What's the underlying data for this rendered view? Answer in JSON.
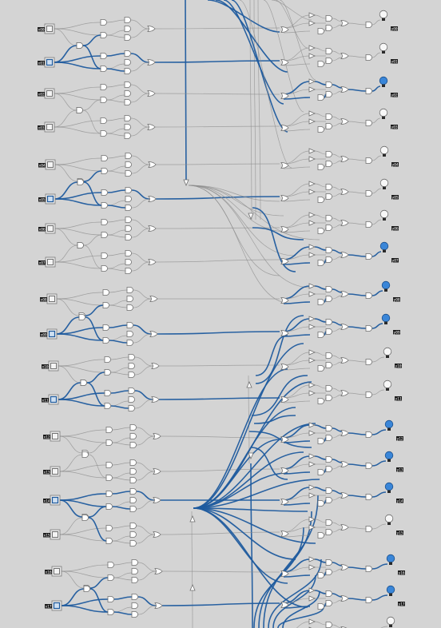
{
  "colors": {
    "background": "#d4d4d4",
    "wire_active": "#1f5b9e",
    "wire_inactive": "#8c8c8c",
    "bulb_on": "#3a86d8",
    "bulb_off": "#f7f7f7"
  },
  "icons": {
    "input_switch": "input-switch-icon",
    "and_gate": "and-gate-icon",
    "or_gate": "or-gate-icon",
    "buffer": "buffer-triangle-icon",
    "output_bulb": "light-bulb-icon"
  },
  "inputs": [
    {
      "label": "x00",
      "on": false
    },
    {
      "label": "x01",
      "on": true
    },
    {
      "label": "x02",
      "on": false
    },
    {
      "label": "x03",
      "on": false
    },
    {
      "label": "x04",
      "on": false
    },
    {
      "label": "x05",
      "on": true
    },
    {
      "label": "x06",
      "on": false
    },
    {
      "label": "x07",
      "on": false
    },
    {
      "label": "x08",
      "on": false
    },
    {
      "label": "x09",
      "on": true
    },
    {
      "label": "x10",
      "on": false
    },
    {
      "label": "x11",
      "on": true
    },
    {
      "label": "x12",
      "on": false
    },
    {
      "label": "x13",
      "on": false
    },
    {
      "label": "x14",
      "on": true
    },
    {
      "label": "x15",
      "on": false
    },
    {
      "label": "x16",
      "on": false
    },
    {
      "label": "x17",
      "on": true
    }
  ],
  "outputs": [
    {
      "label": "y00",
      "on": false
    },
    {
      "label": "y01",
      "on": false
    },
    {
      "label": "y02",
      "on": true
    },
    {
      "label": "y03",
      "on": false
    },
    {
      "label": "y04",
      "on": false
    },
    {
      "label": "y05",
      "on": false
    },
    {
      "label": "y06",
      "on": false
    },
    {
      "label": "y07",
      "on": true
    },
    {
      "label": "y08",
      "on": true
    },
    {
      "label": "y09",
      "on": true
    },
    {
      "label": "y10",
      "on": false
    },
    {
      "label": "y11",
      "on": false
    },
    {
      "label": "y12",
      "on": true
    },
    {
      "label": "y13",
      "on": true
    },
    {
      "label": "y14",
      "on": true
    },
    {
      "label": "y15",
      "on": false
    },
    {
      "label": "y16",
      "on": true
    },
    {
      "label": "y17",
      "on": true
    },
    {
      "label": "y18",
      "on": false
    }
  ]
}
